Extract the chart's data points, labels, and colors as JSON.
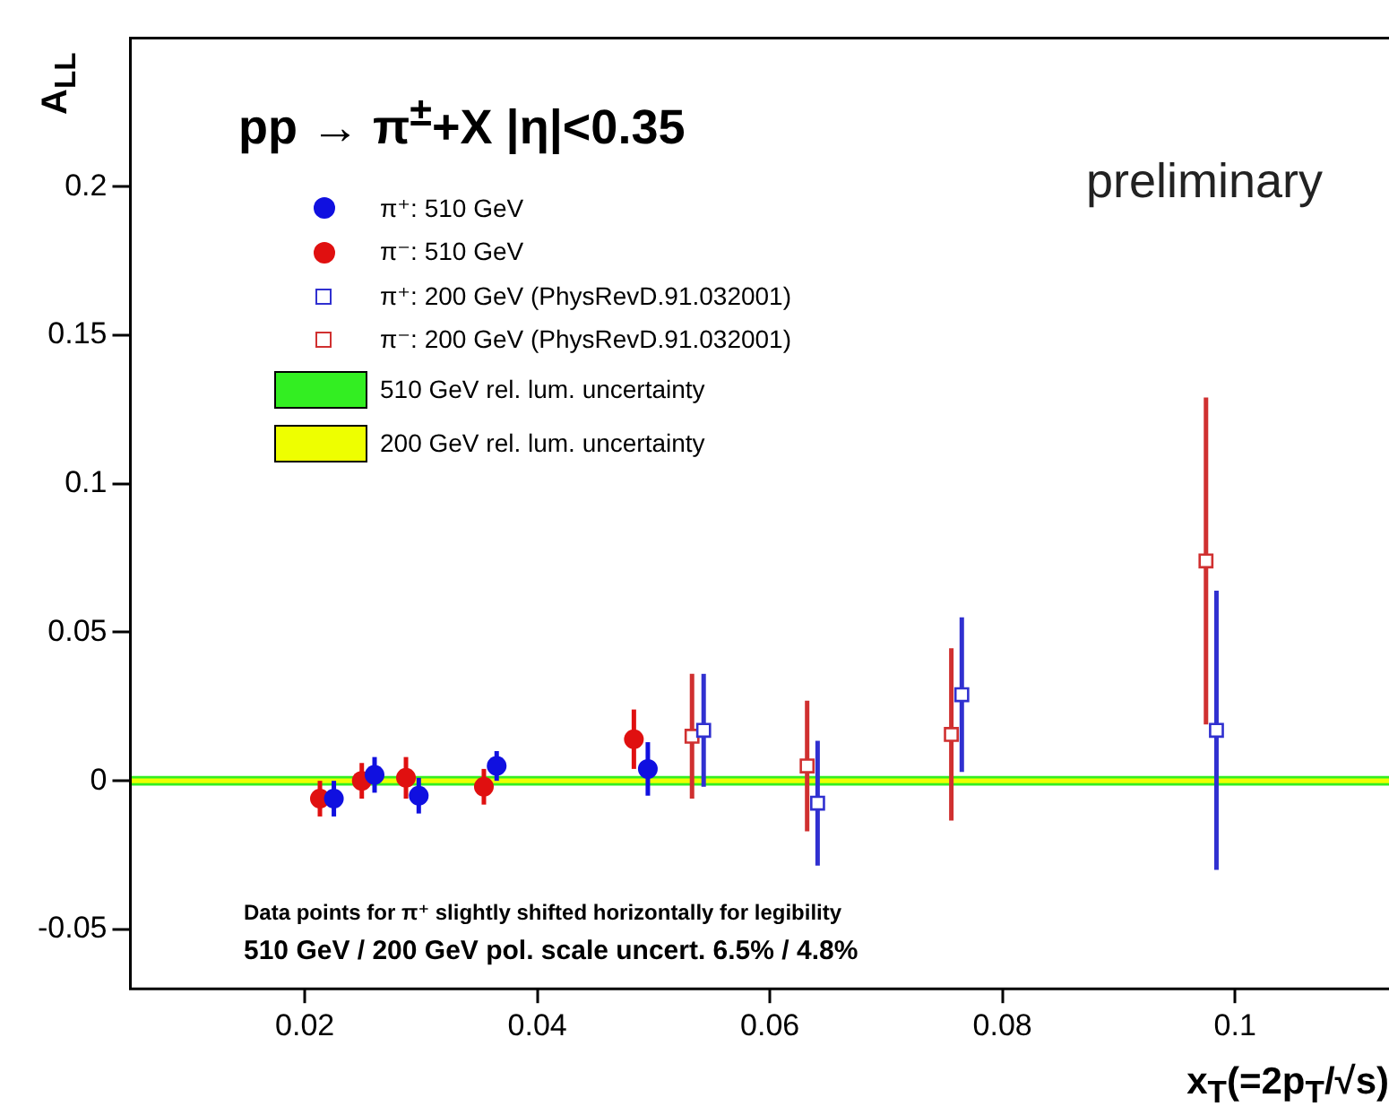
{
  "chart_data": {
    "type": "scatter",
    "title": "pp → π$^{±}$+X  |η|<0.35",
    "xlabel": "x$_{T}$(=2p$_{T}$/√s)",
    "ylabel": "A$_{LL}$",
    "xlim": [
      0.005,
      0.1135
    ],
    "xticks": [
      0.02,
      0.04,
      0.06,
      0.08,
      0.1
    ],
    "ylim": [
      -0.07,
      0.25
    ],
    "yticks": [
      -0.05,
      0,
      0.05,
      0.1,
      0.15,
      0.2
    ],
    "grid": false,
    "legend": "top left",
    "series": [
      {
        "name": "π⁺: 510 GeV",
        "color": "#1010e0",
        "marker": "circle",
        "x": [
          0.0225,
          0.026,
          0.0298,
          0.0365,
          0.0495
        ],
        "values": [
          -0.006,
          0.002,
          -0.005,
          0.005,
          0.004
        ],
        "errors": [
          0.006,
          0.006,
          0.006,
          0.005,
          0.009
        ]
      },
      {
        "name": "π⁻: 510 GeV",
        "color": "#e01010",
        "marker": "circle",
        "x": [
          0.0213,
          0.0249,
          0.0287,
          0.0354,
          0.0483
        ],
        "values": [
          -0.006,
          0.0,
          0.001,
          -0.002,
          0.014
        ],
        "errors": [
          0.006,
          0.006,
          0.007,
          0.006,
          0.01
        ]
      },
      {
        "name": "π⁺: 200 GeV (PhysRevD.91.032001)",
        "color": "#3030d0",
        "marker": "square",
        "x": [
          0.0543,
          0.0641,
          0.0765,
          0.0984
        ],
        "values": [
          0.017,
          -0.0075,
          0.029,
          0.017
        ],
        "errors": [
          0.019,
          0.021,
          0.026,
          0.047
        ]
      },
      {
        "name": "π⁻: 200 GeV (PhysRevD.91.032001)",
        "color": "#d03030",
        "marker": "square",
        "x": [
          0.0533,
          0.0632,
          0.0756,
          0.0975
        ],
        "values": [
          0.015,
          0.005,
          0.0156,
          0.074
        ],
        "errors": [
          0.021,
          0.022,
          0.029,
          0.055
        ]
      }
    ],
    "bands": [
      {
        "axis": "y",
        "from": -0.0016,
        "to": 0.0016,
        "label": "510 GeV rel. lum. uncertainty",
        "color": "#33ee22"
      },
      {
        "axis": "y",
        "from": -0.0008,
        "to": 0.0008,
        "label": "200 GeV rel. lum. uncertainty",
        "color": "#eeff00"
      }
    ],
    "annotations": [
      "preliminary",
      "Data points for π⁺ slightly shifted horizontally for legibility",
      "510 GeV / 200 GeV pol. scale uncert. 6.5% / 4.8%"
    ]
  }
}
